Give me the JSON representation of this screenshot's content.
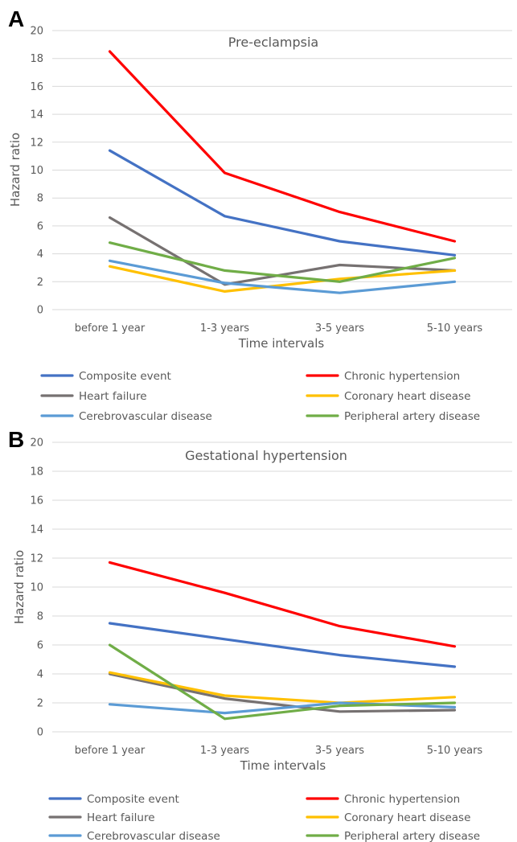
{
  "chart_data": [
    {
      "type": "line",
      "panel_letter": "A",
      "title": "Pre-eclampsia",
      "xlabel": "Time intervals",
      "ylabel": "Hazard ratio",
      "ylim": [
        0,
        20
      ],
      "yticks": [
        0,
        2,
        4,
        6,
        8,
        10,
        12,
        14,
        16,
        18,
        20
      ],
      "grid": true,
      "legend_position": "bottom",
      "categories": [
        "before 1 year",
        "1-3 years",
        "3-5 years",
        "5-10 years"
      ],
      "series": [
        {
          "name": "Composite event",
          "color": "#4472c4",
          "values": [
            11.4,
            6.7,
            4.9,
            3.9
          ]
        },
        {
          "name": "Chronic hypertension",
          "color": "#ff0000",
          "values": [
            18.5,
            9.8,
            7.0,
            4.9
          ]
        },
        {
          "name": "Heart failure",
          "color": "#767171",
          "values": [
            6.6,
            1.8,
            3.2,
            2.8
          ]
        },
        {
          "name": "Coronary heart disease",
          "color": "#ffc000",
          "values": [
            3.1,
            1.3,
            2.2,
            2.8
          ]
        },
        {
          "name": "Cerebrovascular disease",
          "color": "#5b9bd5",
          "values": [
            3.5,
            1.9,
            1.2,
            2.0
          ]
        },
        {
          "name": "Peripheral artery disease",
          "color": "#70ad47",
          "values": [
            4.8,
            2.8,
            2.0,
            3.7
          ]
        }
      ]
    },
    {
      "type": "line",
      "panel_letter": "B",
      "title": "Gestational hypertension",
      "xlabel": "Time intervals",
      "ylabel": "Hazard ratio",
      "ylim": [
        0,
        20
      ],
      "yticks": [
        0,
        2,
        4,
        6,
        8,
        10,
        12,
        14,
        16,
        18,
        20
      ],
      "grid": true,
      "legend_position": "bottom",
      "categories": [
        "before 1 year",
        "1-3 years",
        "3-5 years",
        "5-10 years"
      ],
      "series": [
        {
          "name": "Composite event",
          "color": "#4472c4",
          "values": [
            7.5,
            6.4,
            5.3,
            4.5
          ]
        },
        {
          "name": "Chronic hypertension",
          "color": "#ff0000",
          "values": [
            11.7,
            9.6,
            7.3,
            5.9
          ]
        },
        {
          "name": "Heart failure",
          "color": "#767171",
          "values": [
            4.0,
            2.3,
            1.4,
            1.5
          ]
        },
        {
          "name": "Coronary heart disease",
          "color": "#ffc000",
          "values": [
            4.1,
            2.5,
            2.0,
            2.4
          ]
        },
        {
          "name": "Cerebrovascular disease",
          "color": "#5b9bd5",
          "values": [
            1.9,
            1.3,
            2.0,
            1.7
          ]
        },
        {
          "name": "Peripheral artery disease",
          "color": "#70ad47",
          "values": [
            6.0,
            0.9,
            1.8,
            2.0
          ]
        }
      ]
    }
  ]
}
